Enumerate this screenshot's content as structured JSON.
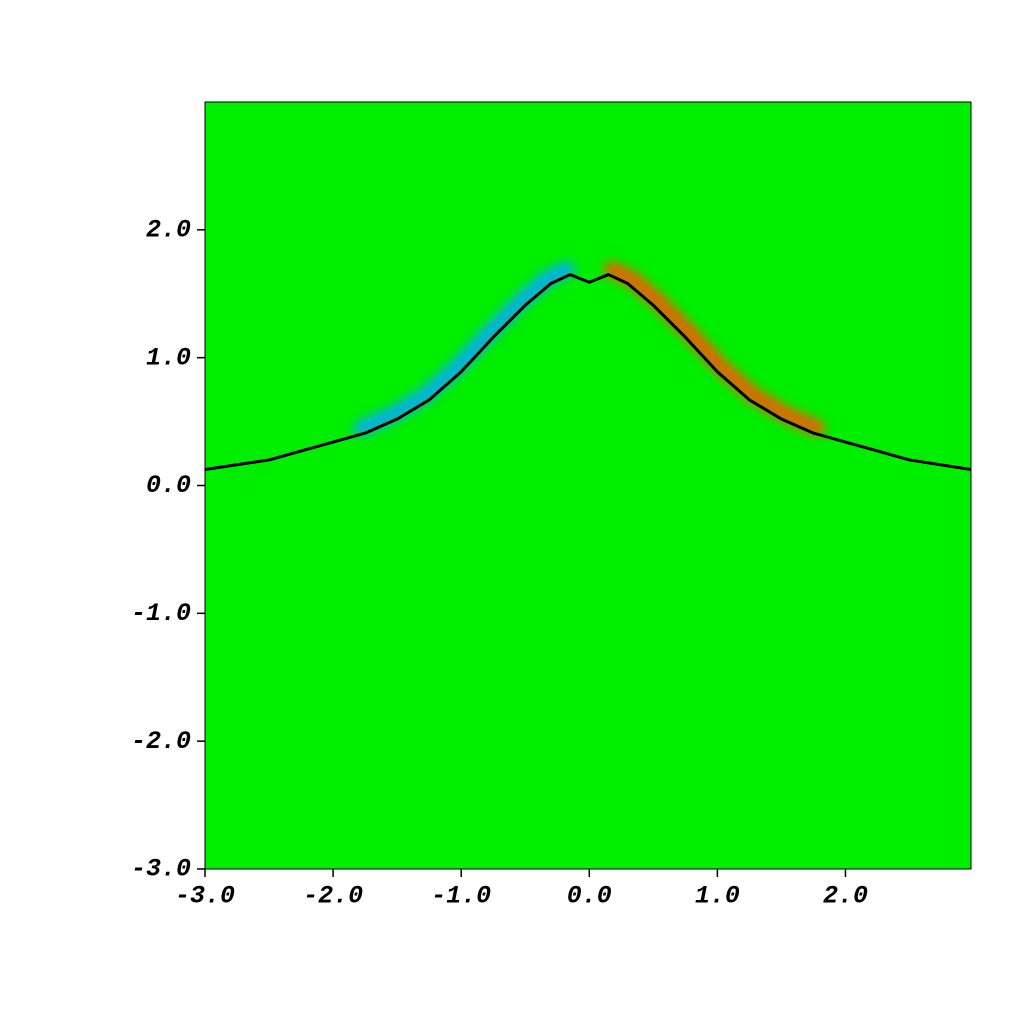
{
  "chart_data": {
    "type": "line",
    "x": [
      -3,
      -2.5,
      -2,
      -1.75,
      -1.5,
      -1.25,
      -1,
      -0.75,
      -0.5,
      -0.3,
      -0.15,
      0,
      0.15,
      0.3,
      0.5,
      0.75,
      1,
      1.25,
      1.5,
      1.75,
      2,
      2.5,
      2.98
    ],
    "series": [
      {
        "color": "#000000",
        "values": [
          0.125,
          0.2,
          0.34,
          0.41,
          0.52,
          0.67,
          0.89,
          1.16,
          1.41,
          1.58,
          1.65,
          1.59,
          1.65,
          1.58,
          1.41,
          1.16,
          0.89,
          0.67,
          0.52,
          0.41,
          0.34,
          0.2,
          0.125
        ]
      }
    ],
    "glow_colors": [
      "#00aaff",
      "#ff5500"
    ],
    "background": "#00ee00",
    "xlim": [
      -3,
      2.98
    ],
    "ylim": [
      -3,
      3
    ],
    "xticks": [
      {
        "value": -3,
        "label": "-3.0"
      },
      {
        "value": -2,
        "label": "-2.0"
      },
      {
        "value": -1,
        "label": "-1.0"
      },
      {
        "value": 0,
        "label": "0.0"
      },
      {
        "value": 1,
        "label": "1.0"
      },
      {
        "value": 2,
        "label": "2.0"
      }
    ],
    "yticks": [
      {
        "value": -3,
        "label": "-3.0"
      },
      {
        "value": -2,
        "label": "-2.0"
      },
      {
        "value": -1,
        "label": "-1.0"
      },
      {
        "value": 0,
        "label": "0.0"
      },
      {
        "value": 1,
        "label": "1.0"
      },
      {
        "value": 2,
        "label": "2.0"
      }
    ]
  }
}
